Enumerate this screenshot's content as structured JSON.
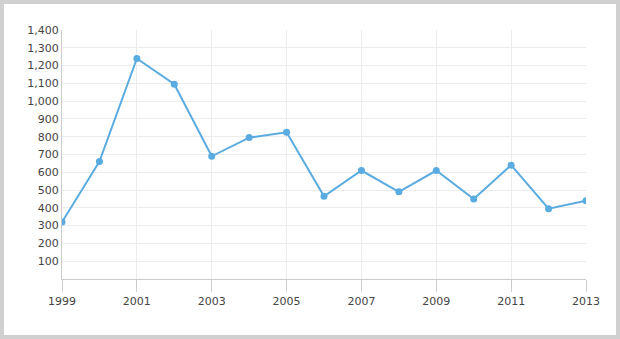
{
  "chart_data": {
    "type": "line",
    "x": [
      1999,
      2000,
      2001,
      2002,
      2003,
      2004,
      2005,
      2006,
      2007,
      2008,
      2009,
      2010,
      2011,
      2012,
      2013
    ],
    "values": [
      320,
      660,
      1240,
      1095,
      690,
      795,
      825,
      465,
      610,
      490,
      610,
      450,
      640,
      395,
      440
    ],
    "color": "#5aabe0",
    "marker": "circle",
    "xlim": [
      1999,
      2013
    ],
    "xticks": [
      1999,
      2001,
      2003,
      2005,
      2007,
      2009,
      2011,
      2013
    ],
    "ylim": [
      0,
      1400
    ],
    "yticks": [
      100,
      200,
      300,
      400,
      500,
      600,
      700,
      800,
      900,
      {
        "value": 1000,
        "label": "1,000"
      },
      {
        "value": 1100,
        "label": "1,100"
      },
      {
        "value": 1200,
        "label": "1,200"
      },
      {
        "value": 1300,
        "label": "1,300"
      },
      {
        "value": 1400,
        "label": "1,400"
      }
    ],
    "grid": true
  }
}
